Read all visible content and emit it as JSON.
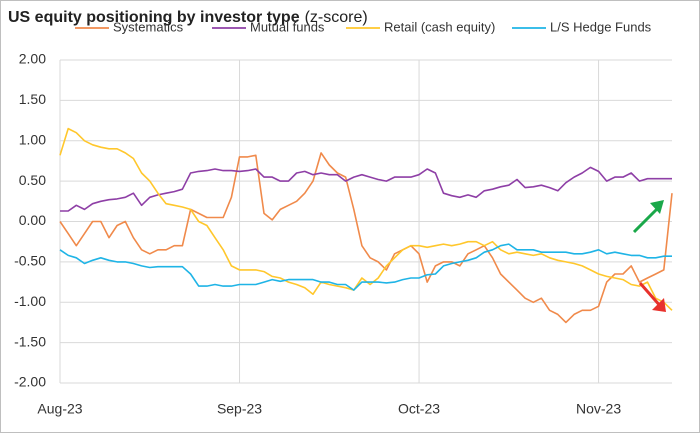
{
  "chart_data": {
    "type": "line",
    "title": "US equity positioning by investor type",
    "subtitle": "(z-score)",
    "categories": [
      "Aug-23",
      null,
      null,
      null,
      null,
      null,
      null,
      null,
      null,
      null,
      null,
      null,
      null,
      null,
      null,
      null,
      null,
      null,
      null,
      null,
      null,
      null,
      "Sep-23",
      null,
      null,
      null,
      null,
      null,
      null,
      null,
      null,
      null,
      null,
      null,
      null,
      null,
      null,
      null,
      null,
      null,
      null,
      null,
      null,
      null,
      "Oct-23",
      null,
      null,
      null,
      null,
      null,
      null,
      null,
      null,
      null,
      null,
      null,
      null,
      null,
      null,
      null,
      null,
      null,
      null,
      null,
      null,
      null,
      "Nov-23",
      null,
      null,
      null,
      null,
      null,
      null,
      null,
      null,
      null
    ],
    "series": [
      {
        "name": "Systematics",
        "color": "#f08a4b",
        "values": [
          0.0,
          -0.15,
          -0.3,
          -0.15,
          0.0,
          0.0,
          -0.2,
          -0.05,
          0.0,
          -0.2,
          -0.35,
          -0.4,
          -0.35,
          -0.35,
          -0.3,
          -0.3,
          0.15,
          0.1,
          0.05,
          0.05,
          0.05,
          0.3,
          0.8,
          0.8,
          0.82,
          0.1,
          0.02,
          0.15,
          0.2,
          0.25,
          0.35,
          0.5,
          0.85,
          0.7,
          0.6,
          0.55,
          0.15,
          -0.3,
          -0.45,
          -0.5,
          -0.6,
          -0.4,
          -0.35,
          -0.3,
          -0.4,
          -0.75,
          -0.55,
          -0.5,
          -0.5,
          -0.55,
          -0.4,
          -0.35,
          -0.3,
          -0.45,
          -0.65,
          -0.75,
          -0.85,
          -0.95,
          -1.0,
          -0.95,
          -1.1,
          -1.15,
          -1.25,
          -1.15,
          -1.1,
          -1.1,
          -1.05,
          -0.75,
          -0.65,
          -0.65,
          -0.55,
          -0.75,
          -0.7,
          -0.65,
          -0.6,
          0.35
        ]
      },
      {
        "name": "Mutual funds",
        "color": "#8e3fa6",
        "values": [
          0.13,
          0.13,
          0.2,
          0.15,
          0.22,
          0.25,
          0.27,
          0.28,
          0.3,
          0.35,
          0.2,
          0.3,
          0.33,
          0.35,
          0.37,
          0.4,
          0.6,
          0.62,
          0.63,
          0.65,
          0.63,
          0.63,
          0.62,
          0.63,
          0.65,
          0.55,
          0.55,
          0.5,
          0.5,
          0.6,
          0.62,
          0.58,
          0.6,
          0.58,
          0.58,
          0.5,
          0.55,
          0.58,
          0.55,
          0.52,
          0.5,
          0.55,
          0.55,
          0.55,
          0.58,
          0.65,
          0.6,
          0.35,
          0.32,
          0.3,
          0.33,
          0.3,
          0.38,
          0.4,
          0.43,
          0.45,
          0.52,
          0.42,
          0.43,
          0.45,
          0.42,
          0.38,
          0.48,
          0.55,
          0.6,
          0.67,
          0.62,
          0.5,
          0.55,
          0.55,
          0.6,
          0.5,
          0.53,
          0.53,
          0.53,
          0.53
        ]
      },
      {
        "name": "Retail (cash equity)",
        "color": "#ffc72c",
        "values": [
          0.82,
          1.15,
          1.1,
          1.0,
          0.95,
          0.92,
          0.9,
          0.9,
          0.85,
          0.78,
          0.6,
          0.5,
          0.35,
          0.22,
          0.2,
          0.18,
          0.15,
          0.0,
          -0.05,
          -0.2,
          -0.35,
          -0.55,
          -0.6,
          -0.6,
          -0.6,
          -0.62,
          -0.68,
          -0.7,
          -0.75,
          -0.78,
          -0.82,
          -0.9,
          -0.75,
          -0.78,
          -0.8,
          -0.82,
          -0.85,
          -0.7,
          -0.78,
          -0.7,
          -0.55,
          -0.45,
          -0.35,
          -0.3,
          -0.3,
          -0.32,
          -0.3,
          -0.28,
          -0.3,
          -0.28,
          -0.25,
          -0.25,
          -0.3,
          -0.25,
          -0.35,
          -0.4,
          -0.38,
          -0.4,
          -0.42,
          -0.4,
          -0.45,
          -0.48,
          -0.5,
          -0.52,
          -0.55,
          -0.6,
          -0.65,
          -0.68,
          -0.7,
          -0.72,
          -0.78,
          -0.8,
          -0.75,
          -0.95,
          -1.0,
          -1.1
        ]
      },
      {
        "name": "L/S Hedge Funds",
        "color": "#1fb4e6",
        "values": [
          -0.35,
          -0.42,
          -0.45,
          -0.52,
          -0.48,
          -0.45,
          -0.48,
          -0.5,
          -0.5,
          -0.52,
          -0.55,
          -0.57,
          -0.56,
          -0.56,
          -0.56,
          -0.56,
          -0.65,
          -0.8,
          -0.8,
          -0.78,
          -0.8,
          -0.8,
          -0.78,
          -0.78,
          -0.78,
          -0.75,
          -0.72,
          -0.74,
          -0.72,
          -0.72,
          -0.72,
          -0.72,
          -0.75,
          -0.75,
          -0.78,
          -0.78,
          -0.85,
          -0.75,
          -0.75,
          -0.75,
          -0.76,
          -0.75,
          -0.72,
          -0.7,
          -0.7,
          -0.66,
          -0.65,
          -0.55,
          -0.52,
          -0.5,
          -0.48,
          -0.45,
          -0.38,
          -0.35,
          -0.3,
          -0.28,
          -0.35,
          -0.35,
          -0.35,
          -0.38,
          -0.38,
          -0.38,
          -0.38,
          -0.4,
          -0.4,
          -0.38,
          -0.35,
          -0.4,
          -0.38,
          -0.4,
          -0.42,
          -0.42,
          -0.45,
          -0.45,
          -0.43,
          -0.43
        ]
      }
    ],
    "ylim": [
      -2,
      2
    ],
    "yticks": [
      {
        "value": 2,
        "label": "2.00"
      },
      {
        "value": 1.5,
        "label": "1.50"
      },
      {
        "value": 1,
        "label": "1.00"
      },
      {
        "value": 0.5,
        "label": "0.50"
      },
      {
        "value": 0,
        "label": "0.00"
      },
      {
        "value": -0.5,
        "label": "-0.50"
      },
      {
        "value": -1,
        "label": "-1.00"
      },
      {
        "value": -1.5,
        "label": "-1.50"
      },
      {
        "value": -2,
        "label": "-2.00"
      }
    ],
    "grid": true
  }
}
